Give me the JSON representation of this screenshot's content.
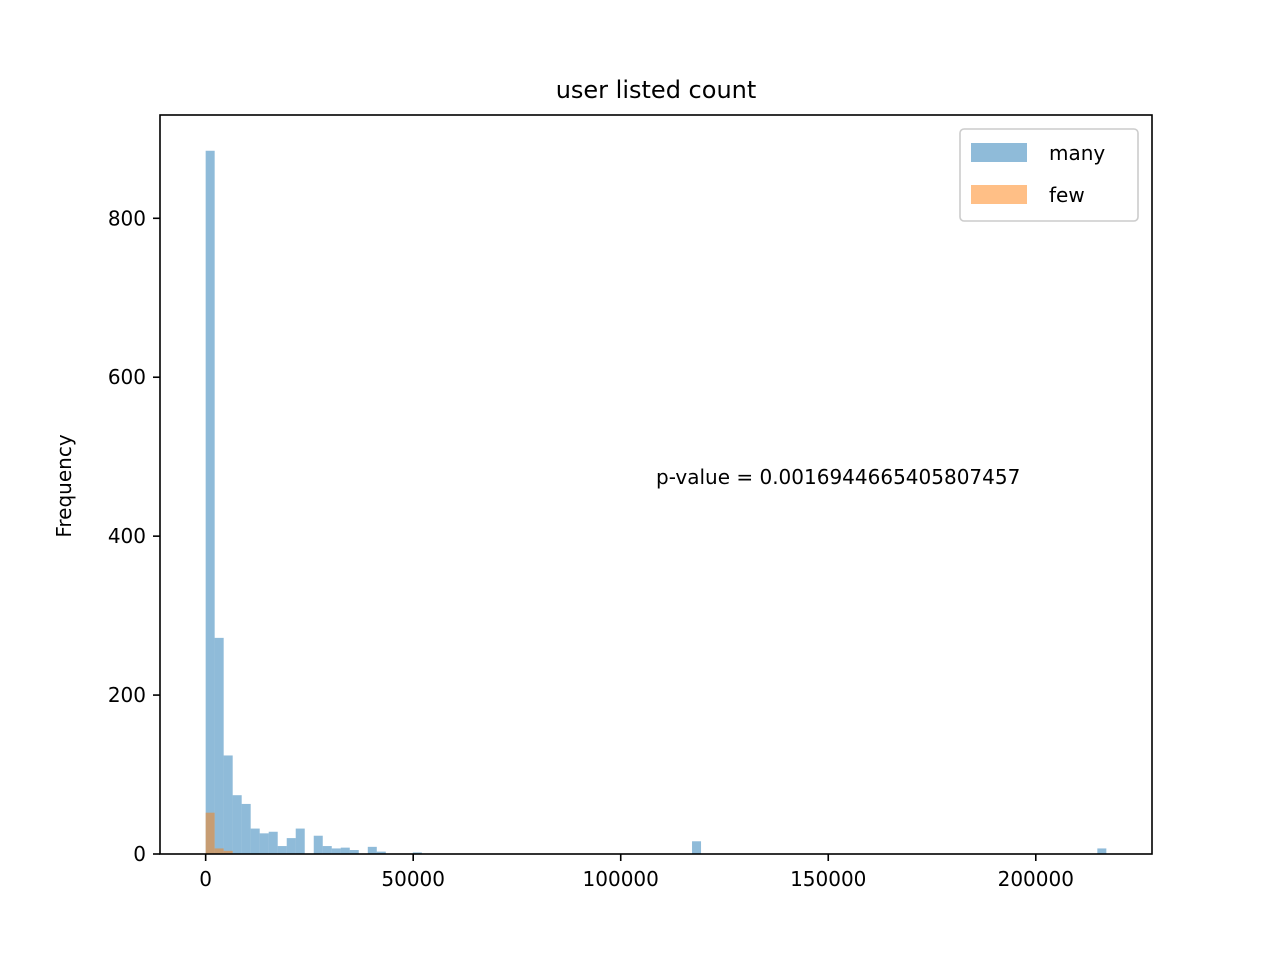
{
  "chart_data": {
    "type": "bar",
    "subtype": "histogram",
    "title": "user listed count",
    "xlabel": "",
    "ylabel": "Frequency",
    "xlim": [
      -11000,
      228000
    ],
    "ylim": [
      0,
      930
    ],
    "x_ticks": [
      0,
      50000,
      100000,
      150000,
      200000
    ],
    "x_tick_labels": [
      "0",
      "50000",
      "100000",
      "150000",
      "200000"
    ],
    "y_ticks": [
      0,
      200,
      400,
      600,
      800
    ],
    "y_tick_labels": [
      "0",
      "200",
      "400",
      "600",
      "800"
    ],
    "grid": false,
    "legend_position": "top-right",
    "annotation": "p-value = 0.0016944665405807457",
    "series": [
      {
        "name": "many",
        "color": "#1f77b4",
        "alpha": 0.5,
        "bin_start": 0,
        "bin_width": 2170,
        "values": [
          885,
          272,
          124,
          74,
          63,
          32,
          26,
          28,
          10,
          20,
          32,
          0,
          23,
          10,
          7,
          8,
          5,
          0,
          9,
          3,
          0,
          0,
          0,
          2,
          0,
          0,
          0,
          0,
          0,
          0,
          0,
          0,
          0,
          0,
          0,
          0,
          0,
          0,
          0,
          0,
          0,
          0,
          0,
          0,
          0,
          0,
          0,
          0,
          0,
          0,
          0,
          0,
          0,
          0,
          16,
          0,
          0,
          0,
          0,
          0,
          0,
          0,
          0,
          0,
          0,
          0,
          0,
          0,
          0,
          0,
          0,
          0,
          0,
          0,
          0,
          0,
          0,
          0,
          0,
          0,
          0,
          0,
          0,
          0,
          0,
          0,
          0,
          0,
          0,
          0,
          0,
          0,
          0,
          0,
          0,
          0,
          0,
          0,
          0,
          7
        ]
      },
      {
        "name": "few",
        "color": "#ff7f0e",
        "alpha": 0.5,
        "bin_start": 0,
        "bin_width": 2170,
        "values": [
          52,
          7,
          4,
          0,
          0,
          0,
          0,
          0,
          0,
          0,
          0,
          0,
          0,
          0,
          0,
          0,
          0,
          0,
          0,
          0,
          0,
          0,
          0,
          0,
          0,
          0,
          0,
          0,
          0,
          0,
          0,
          0,
          0,
          0,
          0,
          0,
          0,
          0,
          0,
          0,
          0,
          0,
          0,
          0,
          0,
          0,
          0,
          0,
          0,
          0,
          0,
          0,
          0,
          0,
          0,
          0,
          0,
          0,
          0,
          0,
          0,
          0,
          0,
          0,
          0,
          0,
          0,
          0,
          0,
          0,
          0,
          0,
          0,
          0,
          0,
          0,
          0,
          0,
          0,
          0,
          0,
          0,
          0,
          0,
          0,
          0,
          0,
          0,
          0,
          0,
          0,
          0,
          0,
          0,
          0,
          0,
          0,
          0,
          0,
          0
        ]
      }
    ]
  }
}
